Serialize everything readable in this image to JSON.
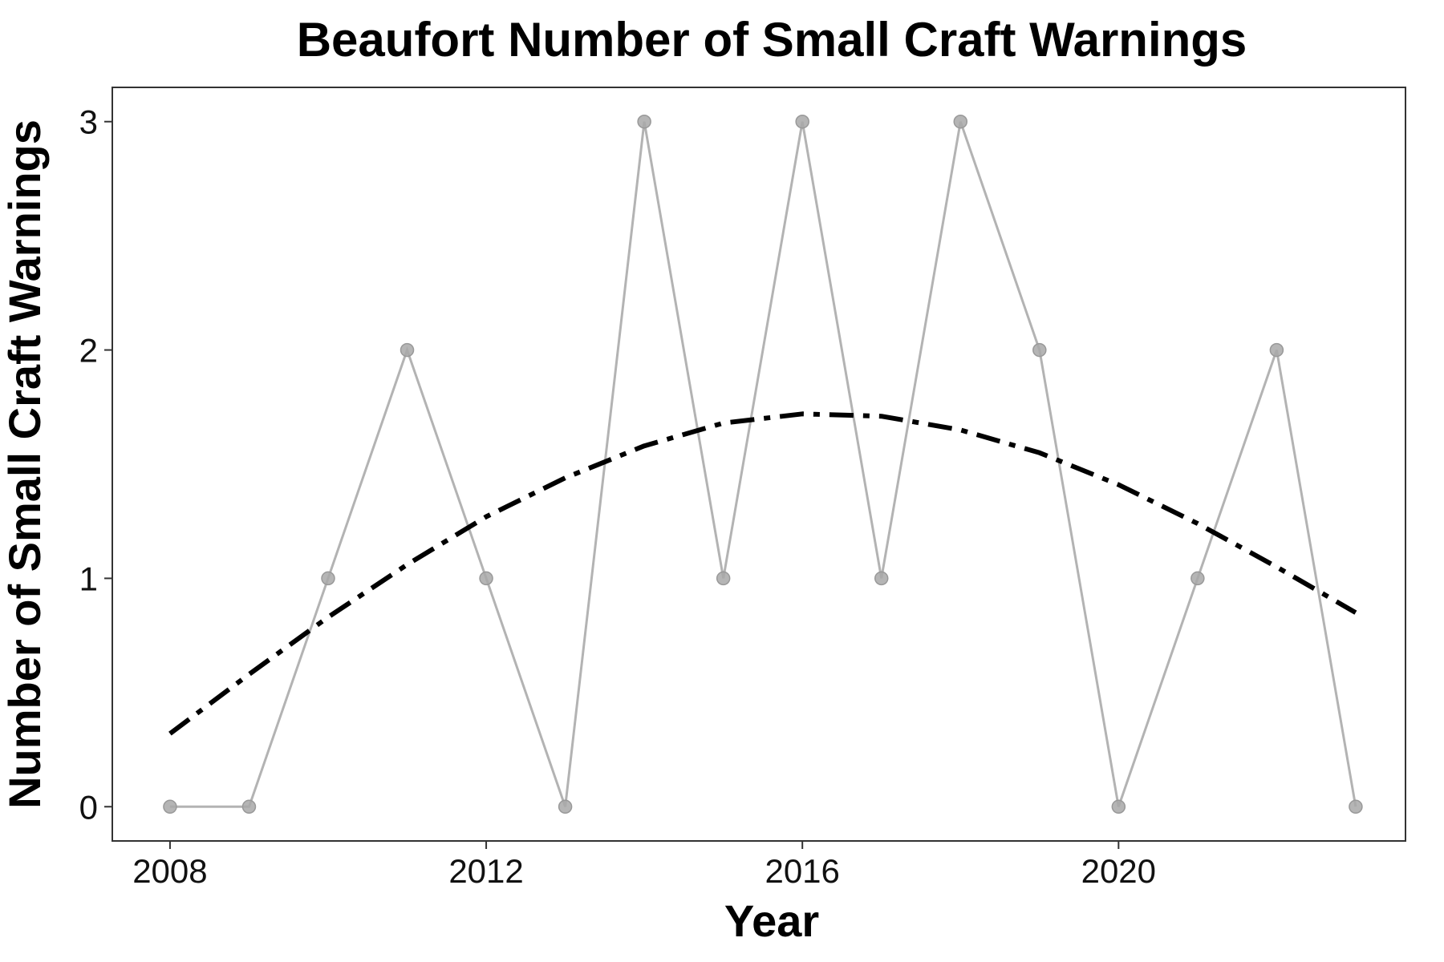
{
  "chart_data": {
    "type": "line",
    "title": "Beaufort Number of Small Craft Warnings",
    "xlabel": "Year",
    "ylabel": "Number of Small Craft Warnings",
    "xlim": [
      2007.27,
      2023.63
    ],
    "ylim": [
      -0.15,
      3.15
    ],
    "x_ticks": [
      2008,
      2012,
      2016,
      2020
    ],
    "y_ticks": [
      0,
      1,
      2,
      3
    ],
    "grid": false,
    "series": [
      {
        "style": "solid-with-points",
        "color": "#b3b3b3",
        "x": [
          2008,
          2009,
          2010,
          2011,
          2012,
          2013,
          2014,
          2015,
          2016,
          2017,
          2018,
          2019,
          2020,
          2021,
          2022,
          2023
        ],
        "y": [
          0,
          0,
          1,
          2,
          1,
          0,
          3,
          1,
          3,
          1,
          3,
          2,
          0,
          1,
          2,
          0
        ]
      },
      {
        "style": "dash-dot",
        "color": "#000000",
        "x": [
          2008,
          2009,
          2010,
          2011,
          2012,
          2013,
          2014,
          2015,
          2016,
          2017,
          2018,
          2019,
          2020,
          2021,
          2022,
          2023
        ],
        "y": [
          0.32,
          0.58,
          0.83,
          1.06,
          1.27,
          1.44,
          1.58,
          1.68,
          1.72,
          1.71,
          1.65,
          1.55,
          1.41,
          1.24,
          1.05,
          0.85
        ]
      }
    ]
  }
}
